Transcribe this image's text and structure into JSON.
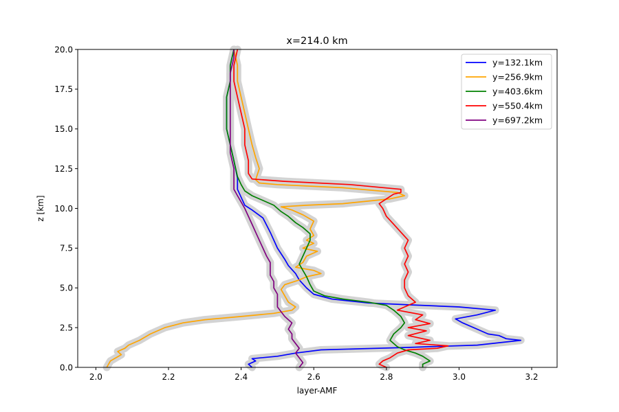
{
  "chart_data": {
    "type": "line",
    "title": "x=214.0 km",
    "xlabel": "layer-AMF",
    "ylabel": "z [km]",
    "xlim": [
      1.95,
      3.27
    ],
    "ylim": [
      0.0,
      20.0
    ],
    "xticks": [
      "2.0",
      "2.2",
      "2.4",
      "2.6",
      "2.8",
      "3.0",
      "3.2"
    ],
    "xtick_values": [
      2.0,
      2.2,
      2.4,
      2.6,
      2.8,
      3.0,
      3.2
    ],
    "yticks": [
      "0.0",
      "2.5",
      "5.0",
      "7.5",
      "10.0",
      "12.5",
      "15.0",
      "17.5",
      "20.0"
    ],
    "ytick_values": [
      0.0,
      2.5,
      5.0,
      7.5,
      10.0,
      12.5,
      15.0,
      17.5,
      20.0
    ],
    "grid": false,
    "legend_position": "top-right",
    "band_color": "#d3d3d3",
    "series": [
      {
        "name": "y=132.1km",
        "color": "#0000ff",
        "points": [
          [
            2.43,
            0.0
          ],
          [
            2.42,
            0.2
          ],
          [
            2.44,
            0.4
          ],
          [
            2.43,
            0.55
          ],
          [
            2.5,
            0.7
          ],
          [
            2.55,
            0.9
          ],
          [
            2.62,
            1.1
          ],
          [
            2.85,
            1.25
          ],
          [
            3.05,
            1.4
          ],
          [
            3.17,
            1.7
          ],
          [
            3.13,
            1.8
          ],
          [
            3.11,
            2.0
          ],
          [
            3.08,
            2.1
          ],
          [
            3.05,
            2.4
          ],
          [
            3.01,
            2.8
          ],
          [
            2.99,
            3.05
          ],
          [
            3.05,
            3.3
          ],
          [
            3.1,
            3.6
          ],
          [
            3.0,
            3.8
          ],
          [
            2.85,
            3.95
          ],
          [
            2.75,
            4.05
          ],
          [
            2.65,
            4.3
          ],
          [
            2.6,
            4.6
          ],
          [
            2.58,
            5.0
          ],
          [
            2.56,
            5.5
          ],
          [
            2.55,
            5.9
          ],
          [
            2.53,
            6.4
          ],
          [
            2.52,
            6.8
          ],
          [
            2.5,
            7.5
          ],
          [
            2.48,
            8.5
          ],
          [
            2.46,
            9.4
          ],
          [
            2.43,
            9.9
          ],
          [
            2.41,
            10.2
          ],
          [
            2.4,
            10.7
          ],
          [
            2.39,
            11.2
          ],
          [
            2.39,
            11.9
          ],
          [
            2.38,
            13.0
          ],
          [
            2.37,
            14.0
          ],
          [
            2.36,
            15.0
          ],
          [
            2.36,
            16.0
          ],
          [
            2.36,
            17.0
          ],
          [
            2.37,
            18.0
          ],
          [
            2.37,
            19.0
          ],
          [
            2.38,
            20.0
          ]
        ]
      },
      {
        "name": "y=256.9km",
        "color": "#ffa500",
        "points": [
          [
            2.03,
            0.0
          ],
          [
            2.04,
            0.4
          ],
          [
            2.07,
            0.8
          ],
          [
            2.06,
            1.0
          ],
          [
            2.08,
            1.2
          ],
          [
            2.09,
            1.4
          ],
          [
            2.12,
            1.7
          ],
          [
            2.15,
            2.1
          ],
          [
            2.19,
            2.5
          ],
          [
            2.24,
            2.8
          ],
          [
            2.3,
            3.0
          ],
          [
            2.4,
            3.2
          ],
          [
            2.49,
            3.4
          ],
          [
            2.54,
            3.6
          ],
          [
            2.55,
            3.8
          ],
          [
            2.53,
            4.1
          ],
          [
            2.52,
            4.5
          ],
          [
            2.51,
            4.9
          ],
          [
            2.52,
            5.2
          ],
          [
            2.56,
            5.5
          ],
          [
            2.58,
            5.7
          ],
          [
            2.62,
            5.9
          ],
          [
            2.6,
            6.1
          ],
          [
            2.55,
            6.3
          ],
          [
            2.57,
            6.6
          ],
          [
            2.58,
            7.0
          ],
          [
            2.61,
            7.3
          ],
          [
            2.57,
            7.5
          ],
          [
            2.6,
            7.8
          ],
          [
            2.58,
            8.0
          ],
          [
            2.6,
            8.3
          ],
          [
            2.59,
            8.7
          ],
          [
            2.6,
            9.2
          ],
          [
            2.57,
            9.6
          ],
          [
            2.54,
            9.9
          ],
          [
            2.51,
            10.1
          ],
          [
            2.58,
            10.2
          ],
          [
            2.68,
            10.3
          ],
          [
            2.81,
            10.6
          ],
          [
            2.85,
            10.8
          ],
          [
            2.83,
            11.0
          ],
          [
            2.68,
            11.3
          ],
          [
            2.5,
            11.5
          ],
          [
            2.45,
            11.6
          ],
          [
            2.44,
            11.8
          ],
          [
            2.45,
            12.5
          ],
          [
            2.44,
            13.2
          ],
          [
            2.43,
            14.0
          ],
          [
            2.42,
            15.0
          ],
          [
            2.41,
            16.0
          ],
          [
            2.4,
            17.0
          ],
          [
            2.39,
            18.0
          ],
          [
            2.39,
            19.0
          ],
          [
            2.38,
            20.0
          ]
        ]
      },
      {
        "name": "y=403.6km",
        "color": "#008000",
        "points": [
          [
            2.9,
            0.0
          ],
          [
            2.9,
            0.2
          ],
          [
            2.92,
            0.4
          ],
          [
            2.91,
            0.55
          ],
          [
            2.9,
            0.7
          ],
          [
            2.88,
            0.9
          ],
          [
            2.85,
            1.1
          ],
          [
            2.83,
            1.3
          ],
          [
            2.81,
            1.7
          ],
          [
            2.82,
            2.1
          ],
          [
            2.84,
            2.5
          ],
          [
            2.85,
            2.8
          ],
          [
            2.84,
            3.2
          ],
          [
            2.82,
            3.6
          ],
          [
            2.8,
            3.9
          ],
          [
            2.75,
            4.1
          ],
          [
            2.68,
            4.3
          ],
          [
            2.63,
            4.5
          ],
          [
            2.6,
            4.8
          ],
          [
            2.59,
            5.2
          ],
          [
            2.58,
            5.7
          ],
          [
            2.57,
            6.1
          ],
          [
            2.56,
            6.5
          ],
          [
            2.57,
            7.0
          ],
          [
            2.58,
            7.5
          ],
          [
            2.59,
            8.0
          ],
          [
            2.59,
            8.4
          ],
          [
            2.57,
            8.8
          ],
          [
            2.55,
            9.1
          ],
          [
            2.53,
            9.5
          ],
          [
            2.51,
            9.8
          ],
          [
            2.49,
            10.2
          ],
          [
            2.46,
            10.5
          ],
          [
            2.43,
            10.8
          ],
          [
            2.41,
            11.1
          ],
          [
            2.4,
            11.5
          ],
          [
            2.39,
            12.0
          ],
          [
            2.38,
            13.0
          ],
          [
            2.37,
            14.0
          ],
          [
            2.36,
            15.0
          ],
          [
            2.36,
            16.0
          ],
          [
            2.36,
            17.0
          ],
          [
            2.37,
            18.0
          ],
          [
            2.37,
            19.0
          ],
          [
            2.38,
            20.0
          ]
        ]
      },
      {
        "name": "y=550.4km",
        "color": "#ff0000",
        "points": [
          [
            2.8,
            0.0
          ],
          [
            2.78,
            0.2
          ],
          [
            2.79,
            0.4
          ],
          [
            2.81,
            0.6
          ],
          [
            2.83,
            0.9
          ],
          [
            2.86,
            1.1
          ],
          [
            2.94,
            1.2
          ],
          [
            2.97,
            1.35
          ],
          [
            2.88,
            1.5
          ],
          [
            2.92,
            1.7
          ],
          [
            2.86,
            2.0
          ],
          [
            2.91,
            2.3
          ],
          [
            2.86,
            2.5
          ],
          [
            2.92,
            2.75
          ],
          [
            2.88,
            3.0
          ],
          [
            2.9,
            3.3
          ],
          [
            2.83,
            3.6
          ],
          [
            2.85,
            3.8
          ],
          [
            2.88,
            4.1
          ],
          [
            2.86,
            4.5
          ],
          [
            2.85,
            5.0
          ],
          [
            2.85,
            5.5
          ],
          [
            2.86,
            6.0
          ],
          [
            2.85,
            6.5
          ],
          [
            2.86,
            7.0
          ],
          [
            2.85,
            7.5
          ],
          [
            2.86,
            8.0
          ],
          [
            2.84,
            8.5
          ],
          [
            2.82,
            9.0
          ],
          [
            2.8,
            9.5
          ],
          [
            2.79,
            10.0
          ],
          [
            2.78,
            10.3
          ],
          [
            2.8,
            10.6
          ],
          [
            2.82,
            10.9
          ],
          [
            2.84,
            11.0
          ],
          [
            2.84,
            11.2
          ],
          [
            2.7,
            11.5
          ],
          [
            2.52,
            11.7
          ],
          [
            2.43,
            11.85
          ],
          [
            2.42,
            12.2
          ],
          [
            2.42,
            13.0
          ],
          [
            2.41,
            14.0
          ],
          [
            2.41,
            15.0
          ],
          [
            2.4,
            16.0
          ],
          [
            2.39,
            17.0
          ],
          [
            2.38,
            18.0
          ],
          [
            2.38,
            19.0
          ],
          [
            2.39,
            20.0
          ]
        ]
      },
      {
        "name": "y=697.2km",
        "color": "#800080",
        "points": [
          [
            2.56,
            0.0
          ],
          [
            2.57,
            0.3
          ],
          [
            2.56,
            0.6
          ],
          [
            2.55,
            0.9
          ],
          [
            2.56,
            1.2
          ],
          [
            2.55,
            1.5
          ],
          [
            2.54,
            1.8
          ],
          [
            2.54,
            2.1
          ],
          [
            2.53,
            2.4
          ],
          [
            2.54,
            2.8
          ],
          [
            2.52,
            3.2
          ],
          [
            2.51,
            3.5
          ],
          [
            2.5,
            3.8
          ],
          [
            2.5,
            4.2
          ],
          [
            2.5,
            4.6
          ],
          [
            2.49,
            5.0
          ],
          [
            2.49,
            5.4
          ],
          [
            2.48,
            5.8
          ],
          [
            2.48,
            6.2
          ],
          [
            2.48,
            6.6
          ],
          [
            2.47,
            7.0
          ],
          [
            2.46,
            7.5
          ],
          [
            2.45,
            8.0
          ],
          [
            2.44,
            8.5
          ],
          [
            2.43,
            9.0
          ],
          [
            2.42,
            9.5
          ],
          [
            2.41,
            10.0
          ],
          [
            2.4,
            10.4
          ],
          [
            2.39,
            10.8
          ],
          [
            2.38,
            11.2
          ],
          [
            2.38,
            11.7
          ],
          [
            2.38,
            12.5
          ],
          [
            2.37,
            13.5
          ],
          [
            2.37,
            14.5
          ],
          [
            2.37,
            15.5
          ],
          [
            2.37,
            16.5
          ],
          [
            2.37,
            17.5
          ],
          [
            2.37,
            18.5
          ],
          [
            2.38,
            19.5
          ],
          [
            2.38,
            20.0
          ]
        ]
      }
    ]
  }
}
